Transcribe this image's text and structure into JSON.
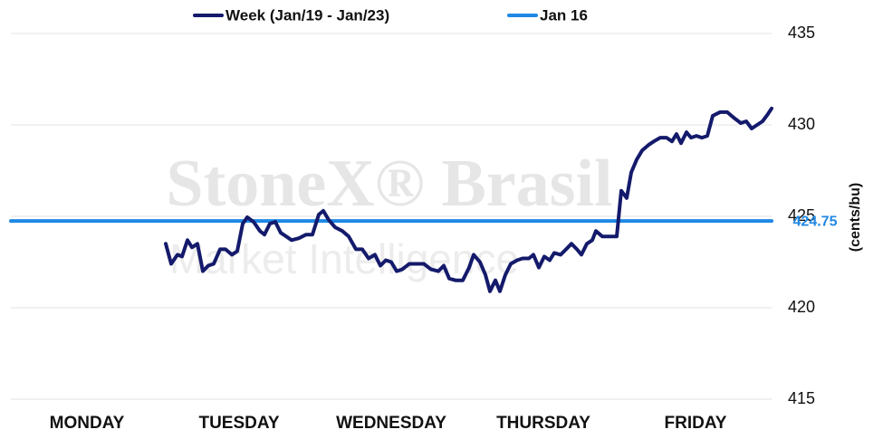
{
  "chart_data": {
    "type": "line",
    "watermark": [
      "StoneX® Brasil",
      "Market Intelligence"
    ],
    "y_label": "(cents/bu)",
    "categories": [
      "MONDAY",
      "TUESDAY",
      "WEDNESDAY",
      "THURSDAY",
      "FRIDAY"
    ],
    "xlim": [
      0,
      840
    ],
    "ylim": [
      415,
      435
    ],
    "yticks": [
      415,
      420,
      425,
      430,
      435
    ],
    "grid": true,
    "legend": "top",
    "series": [
      {
        "name": "Week (Jan/19 - Jan/23)",
        "color": "#141a6b",
        "x": [
          171,
          177,
          184,
          189,
          195,
          200,
          206,
          212,
          218,
          224,
          231,
          237,
          244,
          250,
          256,
          261,
          268,
          275,
          280,
          286,
          292,
          298,
          304,
          310,
          318,
          326,
          333,
          340,
          345,
          351,
          358,
          366,
          373,
          381,
          388,
          395,
          402,
          408,
          414,
          420,
          426,
          432,
          440,
          448,
          456,
          464,
          472,
          478,
          484,
          491,
          499,
          506,
          511,
          518,
          524,
          529,
          535,
          540,
          546,
          552,
          559,
          565,
          572,
          577,
          583,
          589,
          595,
          600,
          607,
          613,
          619,
          625,
          630,
          636,
          642,
          646,
          653,
          660,
          669,
          674,
          680,
          685,
          691,
          697,
          704,
          710,
          717,
          724,
          730,
          735,
          740,
          746,
          751,
          757,
          763,
          769,
          775,
          783,
          791,
          798,
          806,
          812,
          818,
          824,
          830,
          836,
          840
        ],
        "values": [
          423.5,
          422.4,
          422.9,
          422.8,
          423.7,
          423.3,
          423.5,
          422.0,
          422.3,
          422.4,
          423.2,
          423.2,
          422.9,
          423.1,
          424.6,
          424.95,
          424.7,
          424.2,
          424.0,
          424.6,
          424.7,
          424.1,
          423.9,
          423.7,
          423.8,
          424.0,
          424.0,
          425.1,
          425.3,
          424.8,
          424.4,
          424.2,
          423.9,
          423.2,
          423.2,
          422.7,
          422.9,
          422.3,
          422.6,
          422.5,
          422.0,
          422.1,
          422.4,
          422.4,
          422.4,
          422.1,
          422.0,
          422.3,
          421.6,
          421.5,
          421.5,
          422.2,
          422.9,
          422.5,
          421.8,
          420.9,
          421.5,
          420.9,
          421.8,
          422.4,
          422.6,
          422.7,
          422.7,
          422.9,
          422.2,
          422.8,
          422.6,
          423.0,
          422.9,
          423.2,
          423.5,
          423.2,
          422.9,
          423.5,
          423.7,
          424.2,
          423.9,
          423.9,
          423.9,
          426.4,
          426.0,
          427.4,
          428.1,
          428.6,
          428.9,
          429.1,
          429.3,
          429.3,
          429.1,
          429.5,
          429.0,
          429.6,
          429.3,
          429.4,
          429.3,
          429.4,
          430.5,
          430.7,
          430.7,
          430.4,
          430.1,
          430.2,
          429.8,
          430.0,
          430.2,
          430.6,
          430.9
        ]
      },
      {
        "name": "Jan 16",
        "color": "#1f88e5",
        "x": [
          0,
          840
        ],
        "values": [
          424.75,
          424.75
        ]
      }
    ]
  }
}
